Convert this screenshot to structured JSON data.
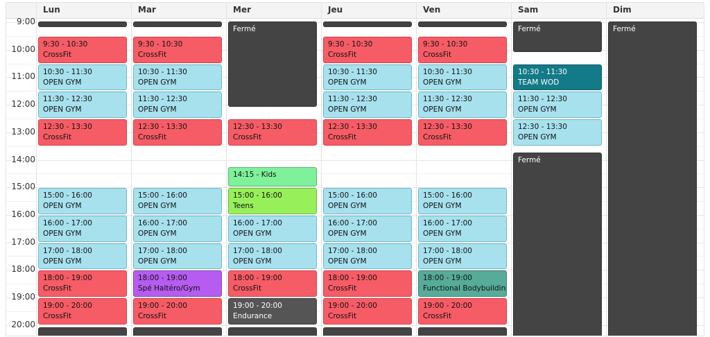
{
  "days": [
    "Lun",
    "Mar",
    "Mer",
    "Jeu",
    "Ven",
    "Sam",
    "Dim"
  ],
  "hours": [
    "9:00",
    "10:00",
    "11:00",
    "12:00",
    "13:00",
    "14:00",
    "15:00",
    "16:00",
    "17:00",
    "18:00",
    "19:00",
    "20:00"
  ],
  "colors": {
    "crossfit": "#f65c66",
    "opengym": "#a7e1ee",
    "closed": "#444444",
    "teamwod": "#137a87",
    "kids": "#7ff19b",
    "teens": "#97f05a",
    "spe": "#b65cf0",
    "functional": "#56ac99",
    "endurance": "#555555"
  },
  "events": [
    {
      "day": 0,
      "start": 8.95,
      "end": 9.1,
      "color": "closed",
      "line1": "",
      "line2": ""
    },
    {
      "day": 0,
      "start": 9.5,
      "end": 10.5,
      "color": "crossfit",
      "line1": "9:30 - 10:30",
      "line2": "CrossFit"
    },
    {
      "day": 0,
      "start": 10.5,
      "end": 11.5,
      "color": "opengym",
      "line1": "10:30 - 11:30",
      "line2": "OPEN GYM"
    },
    {
      "day": 0,
      "start": 11.5,
      "end": 12.5,
      "color": "opengym",
      "line1": "11:30 - 12:30",
      "line2": "OPEN GYM"
    },
    {
      "day": 0,
      "start": 12.5,
      "end": 13.5,
      "color": "crossfit",
      "line1": "12:30 - 13:30",
      "line2": "CrossFit"
    },
    {
      "day": 0,
      "start": 15,
      "end": 16,
      "color": "opengym",
      "line1": "15:00 - 16:00",
      "line2": "OPEN GYM"
    },
    {
      "day": 0,
      "start": 16,
      "end": 17,
      "color": "opengym",
      "line1": "16:00 - 17:00",
      "line2": "OPEN GYM"
    },
    {
      "day": 0,
      "start": 17,
      "end": 18,
      "color": "opengym",
      "line1": "17:00 - 18:00",
      "line2": "OPEN GYM"
    },
    {
      "day": 0,
      "start": 18,
      "end": 19,
      "color": "crossfit",
      "line1": "18:00 - 19:00",
      "line2": "CrossFit"
    },
    {
      "day": 0,
      "start": 19,
      "end": 20,
      "color": "crossfit",
      "line1": "19:00 - 20:00",
      "line2": "CrossFit"
    },
    {
      "day": 0,
      "start": 20.05,
      "end": 20.5,
      "color": "closed",
      "line1": "",
      "line2": ""
    },
    {
      "day": 1,
      "start": 8.95,
      "end": 9.1,
      "color": "closed",
      "line1": "",
      "line2": ""
    },
    {
      "day": 1,
      "start": 9.5,
      "end": 10.5,
      "color": "crossfit",
      "line1": "9:30 - 10:30",
      "line2": "CrossFit"
    },
    {
      "day": 1,
      "start": 10.5,
      "end": 11.5,
      "color": "opengym",
      "line1": "10:30 - 11:30",
      "line2": "OPEN GYM"
    },
    {
      "day": 1,
      "start": 11.5,
      "end": 12.5,
      "color": "opengym",
      "line1": "11:30 - 12:30",
      "line2": "OPEN GYM"
    },
    {
      "day": 1,
      "start": 12.5,
      "end": 13.5,
      "color": "crossfit",
      "line1": "12:30 - 13:30",
      "line2": "CrossFit"
    },
    {
      "day": 1,
      "start": 15,
      "end": 16,
      "color": "opengym",
      "line1": "15:00 - 16:00",
      "line2": "OPEN GYM"
    },
    {
      "day": 1,
      "start": 16,
      "end": 17,
      "color": "opengym",
      "line1": "16:00 - 17:00",
      "line2": "OPEN GYM"
    },
    {
      "day": 1,
      "start": 17,
      "end": 18,
      "color": "opengym",
      "line1": "17:00 - 18:00",
      "line2": "OPEN GYM"
    },
    {
      "day": 1,
      "start": 18,
      "end": 19,
      "color": "spe",
      "line1": "18:00 - 19:00",
      "line2": "Spé Haltéro/Gym"
    },
    {
      "day": 1,
      "start": 19,
      "end": 20,
      "color": "crossfit",
      "line1": "19:00 - 20:00",
      "line2": "CrossFit"
    },
    {
      "day": 1,
      "start": 20.05,
      "end": 20.5,
      "color": "closed",
      "line1": "",
      "line2": ""
    },
    {
      "day": 2,
      "start": 8.95,
      "end": 12.1,
      "color": "closed",
      "line1": "Fermé",
      "line2": ""
    },
    {
      "day": 2,
      "start": 12.5,
      "end": 13.5,
      "color": "crossfit",
      "line1": "12:30 - 13:30",
      "line2": "CrossFit"
    },
    {
      "day": 2,
      "start": 14.25,
      "end": 15,
      "color": "kids",
      "line1": "14:15 - Kids",
      "line2": ""
    },
    {
      "day": 2,
      "start": 15,
      "end": 16,
      "color": "teens",
      "line1": "15:00 - 16:00",
      "line2": "Teens"
    },
    {
      "day": 2,
      "start": 16,
      "end": 17,
      "color": "opengym",
      "line1": "16:00 - 17:00",
      "line2": "OPEN GYM"
    },
    {
      "day": 2,
      "start": 17,
      "end": 18,
      "color": "opengym",
      "line1": "17:00 - 18:00",
      "line2": "OPEN GYM"
    },
    {
      "day": 2,
      "start": 18,
      "end": 19,
      "color": "crossfit",
      "line1": "18:00 - 19:00",
      "line2": "CrossFit"
    },
    {
      "day": 2,
      "start": 19,
      "end": 20,
      "color": "endurance",
      "line1": "19:00 - 20:00",
      "line2": "Endurance"
    },
    {
      "day": 2,
      "start": 20.05,
      "end": 20.5,
      "color": "closed",
      "line1": "",
      "line2": ""
    },
    {
      "day": 3,
      "start": 8.95,
      "end": 9.1,
      "color": "closed",
      "line1": "",
      "line2": ""
    },
    {
      "day": 3,
      "start": 9.5,
      "end": 10.5,
      "color": "crossfit",
      "line1": "9:30 - 10:30",
      "line2": "CrossFit"
    },
    {
      "day": 3,
      "start": 10.5,
      "end": 11.5,
      "color": "opengym",
      "line1": "10:30 - 11:30",
      "line2": "OPEN GYM"
    },
    {
      "day": 3,
      "start": 11.5,
      "end": 12.5,
      "color": "opengym",
      "line1": "11:30 - 12:30",
      "line2": "OPEN GYM"
    },
    {
      "day": 3,
      "start": 12.5,
      "end": 13.5,
      "color": "crossfit",
      "line1": "12:30 - 13:30",
      "line2": "CrossFit"
    },
    {
      "day": 3,
      "start": 15,
      "end": 16,
      "color": "opengym",
      "line1": "15:00 - 16:00",
      "line2": "OPEN GYM"
    },
    {
      "day": 3,
      "start": 16,
      "end": 17,
      "color": "opengym",
      "line1": "16:00 - 17:00",
      "line2": "OPEN GYM"
    },
    {
      "day": 3,
      "start": 17,
      "end": 18,
      "color": "opengym",
      "line1": "17:00 - 18:00",
      "line2": "OPEN GYM"
    },
    {
      "day": 3,
      "start": 18,
      "end": 19,
      "color": "crossfit",
      "line1": "18:00 - 19:00",
      "line2": "CrossFit"
    },
    {
      "day": 3,
      "start": 19,
      "end": 20,
      "color": "crossfit",
      "line1": "19:00 - 20:00",
      "line2": "CrossFit"
    },
    {
      "day": 3,
      "start": 20.05,
      "end": 20.5,
      "color": "closed",
      "line1": "",
      "line2": ""
    },
    {
      "day": 4,
      "start": 8.95,
      "end": 9.1,
      "color": "closed",
      "line1": "",
      "line2": ""
    },
    {
      "day": 4,
      "start": 9.5,
      "end": 10.5,
      "color": "crossfit",
      "line1": "9:30 - 10:30",
      "line2": "CrossFit"
    },
    {
      "day": 4,
      "start": 10.5,
      "end": 11.5,
      "color": "opengym",
      "line1": "10:30 - 11:30",
      "line2": "OPEN GYM"
    },
    {
      "day": 4,
      "start": 11.5,
      "end": 12.5,
      "color": "opengym",
      "line1": "11:30 - 12:30",
      "line2": "OPEN GYM"
    },
    {
      "day": 4,
      "start": 12.5,
      "end": 13.5,
      "color": "crossfit",
      "line1": "12:30 - 13:30",
      "line2": "CrossFit"
    },
    {
      "day": 4,
      "start": 15,
      "end": 16,
      "color": "opengym",
      "line1": "15:00 - 16:00",
      "line2": "OPEN GYM"
    },
    {
      "day": 4,
      "start": 16,
      "end": 17,
      "color": "opengym",
      "line1": "16:00 - 17:00",
      "line2": "OPEN GYM"
    },
    {
      "day": 4,
      "start": 17,
      "end": 18,
      "color": "opengym",
      "line1": "17:00 - 18:00",
      "line2": "OPEN GYM"
    },
    {
      "day": 4,
      "start": 18,
      "end": 19,
      "color": "functional",
      "line1": "18:00 - 19:00",
      "line2": "Functional Bodybuilding"
    },
    {
      "day": 4,
      "start": 19,
      "end": 20,
      "color": "crossfit",
      "line1": "19:00 - 20:00",
      "line2": "CrossFit"
    },
    {
      "day": 4,
      "start": 20.05,
      "end": 20.5,
      "color": "closed",
      "line1": "",
      "line2": ""
    },
    {
      "day": 5,
      "start": 8.95,
      "end": 10.1,
      "color": "closed",
      "line1": "Fermé",
      "line2": ""
    },
    {
      "day": 5,
      "start": 10.5,
      "end": 11.5,
      "color": "teamwod",
      "line1": "10:30 - 11:30",
      "line2": "TEAM WOD"
    },
    {
      "day": 5,
      "start": 11.5,
      "end": 12.5,
      "color": "opengym",
      "line1": "11:30 - 12:30",
      "line2": "OPEN GYM"
    },
    {
      "day": 5,
      "start": 12.5,
      "end": 13.5,
      "color": "opengym",
      "line1": "12:30 - 13:30",
      "line2": "OPEN GYM"
    },
    {
      "day": 5,
      "start": 13.7,
      "end": 20.5,
      "color": "closed",
      "line1": "Fermé",
      "line2": ""
    },
    {
      "day": 6,
      "start": 8.95,
      "end": 20.5,
      "color": "closed",
      "line1": "Fermé",
      "line2": ""
    }
  ]
}
